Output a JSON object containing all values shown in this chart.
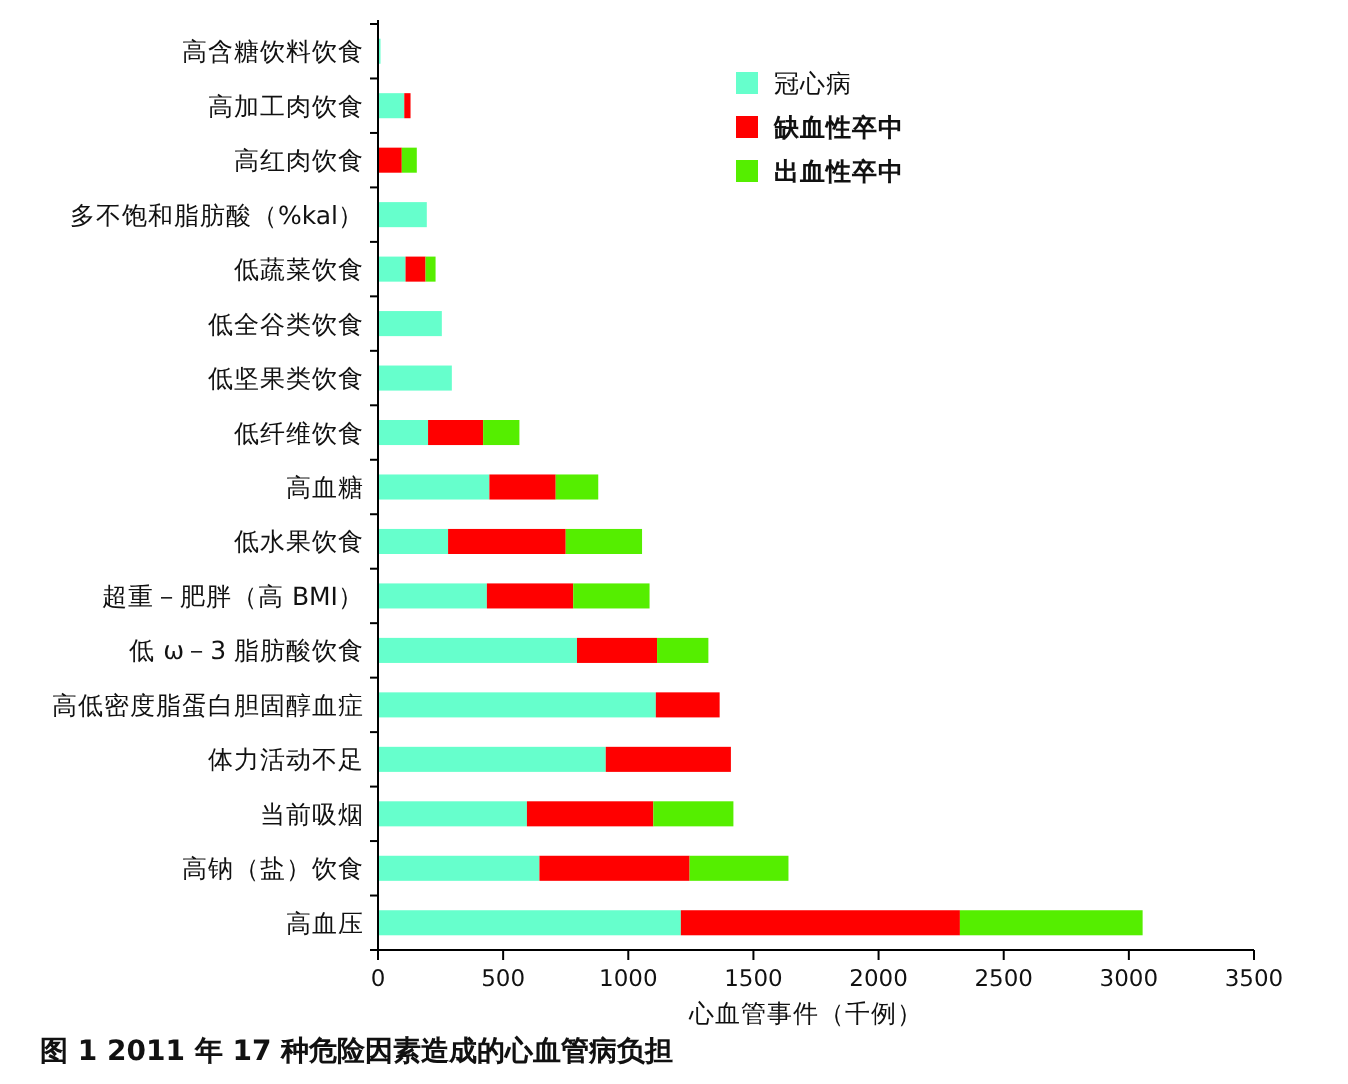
{
  "chart_data": {
    "type": "bar",
    "orientation": "horizontal",
    "stacked": true,
    "xlabel": "心血管事件（千例）",
    "annotations": [
      "图 1  2011 年 17 种危险因素造成的心血管病负担"
    ],
    "categories": [
      "高含糖饮料饮食",
      "高加工肉饮食",
      "高红肉饮食",
      "多不饱和脂肪酸（%kal）",
      "低蔬菜饮食",
      "低全谷类饮食",
      "低坚果类饮食",
      "低纤维饮食",
      "高血糖",
      "低水果饮食",
      "超重－肥胖（高 BMI）",
      "低 ω－3 脂肪酸饮食",
      "高低密度脂蛋白胆固醇血症",
      "体力活动不足",
      "当前吸烟",
      "高钠（盐）饮食",
      "高血压"
    ],
    "series": [
      {
        "name": "冠心病",
        "color": "#66ffcc",
        "values": [
          10,
          105,
          0,
          195,
          110,
          255,
          295,
          200,
          445,
          280,
          435,
          795,
          1110,
          910,
          595,
          645,
          1210
        ]
      },
      {
        "name": "缺血性卒中",
        "color": "#ff0000",
        "values": [
          0,
          25,
          95,
          0,
          80,
          0,
          0,
          220,
          265,
          470,
          345,
          320,
          255,
          500,
          505,
          600,
          1115
        ]
      },
      {
        "name": "出血性卒中",
        "color": "#55ee00",
        "values": [
          0,
          0,
          60,
          0,
          40,
          0,
          0,
          145,
          170,
          305,
          305,
          205,
          0,
          0,
          320,
          395,
          730
        ]
      }
    ],
    "xlim": [
      0,
      3500
    ],
    "xticks": [
      0,
      500,
      1000,
      1500,
      2000,
      2500,
      3000,
      3500
    ],
    "legend": "top right"
  }
}
